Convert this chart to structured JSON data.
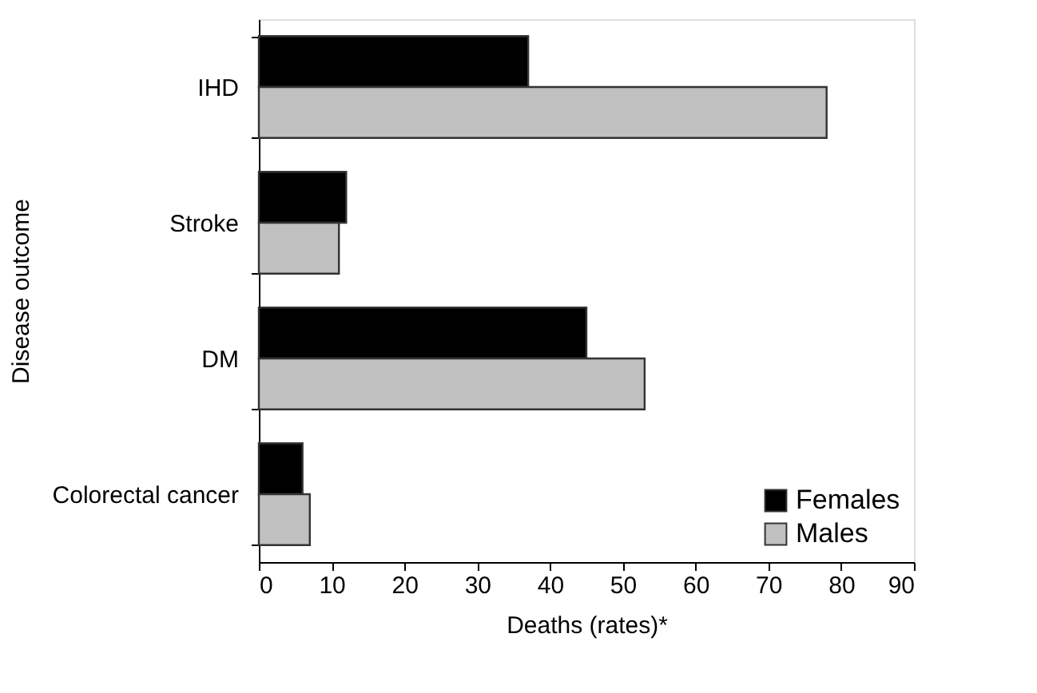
{
  "chart_data": {
    "type": "bar",
    "orientation": "horizontal",
    "xlabel": "Deaths (rates)*",
    "ylabel": "Disease outcome",
    "categories": [
      "IHD",
      "Stroke",
      "DM",
      "Colorectal cancer"
    ],
    "series": [
      {
        "name": "Females",
        "color": "#000000",
        "values": [
          37,
          12,
          45,
          6
        ]
      },
      {
        "name": "Males",
        "color": "#c0c0c0",
        "values": [
          78,
          11,
          53,
          7
        ]
      }
    ],
    "xlim": [
      0,
      90
    ],
    "xticks": [
      0,
      10,
      20,
      30,
      40,
      50,
      60,
      70,
      80,
      90
    ],
    "grid": false,
    "legend": "bottom right"
  }
}
